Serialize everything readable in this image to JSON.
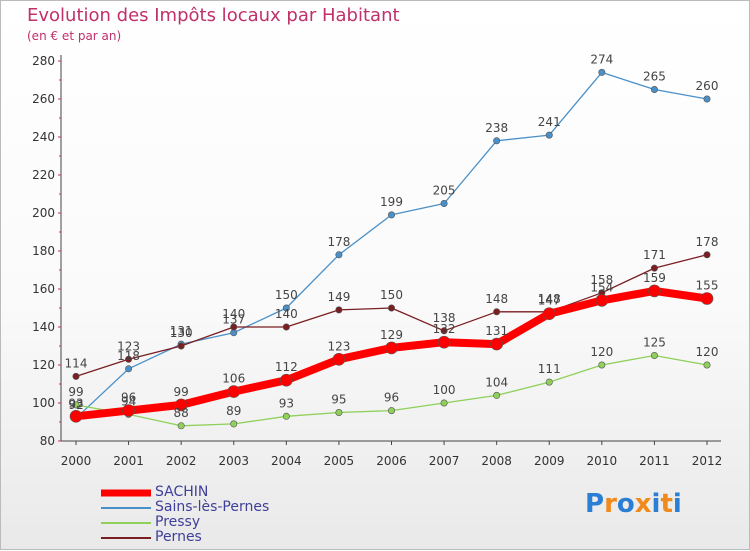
{
  "chart_data": {
    "type": "line",
    "title": "Evolution des Impôts locaux par Habitant",
    "subtitle": "(en € et par an)",
    "x": [
      "2000",
      "2001",
      "2002",
      "2003",
      "2004",
      "2005",
      "2006",
      "2007",
      "2008",
      "2009",
      "2010",
      "2011",
      "2012"
    ],
    "ylim": [
      80,
      280
    ],
    "yticks": [
      80,
      100,
      120,
      140,
      160,
      180,
      200,
      220,
      240,
      260,
      280
    ],
    "grid": false,
    "legend_position": "bottom-left",
    "series": [
      {
        "name": "SACHIN",
        "color": "#ff0000",
        "values": [
          93,
          96,
          99,
          106,
          112,
          123,
          129,
          132,
          131,
          147,
          154,
          159,
          155
        ]
      },
      {
        "name": "Sains-lès-Pernes",
        "color": "#4a90c8",
        "values": [
          92,
          118,
          131,
          137,
          150,
          178,
          199,
          205,
          238,
          241,
          274,
          265,
          260
        ]
      },
      {
        "name": "Pressy",
        "color": "#8ed05a",
        "values": [
          99,
          94,
          88,
          89,
          93,
          95,
          96,
          100,
          104,
          111,
          120,
          125,
          120
        ]
      },
      {
        "name": "Pernes",
        "color": "#7a1e22",
        "values": [
          114,
          123,
          130,
          140,
          140,
          149,
          150,
          138,
          148,
          148,
          158,
          171,
          178
        ]
      }
    ]
  },
  "logo": {
    "text": "Proxiti",
    "letters": [
      "P",
      "r",
      "o",
      "x",
      "i",
      "t",
      "i"
    ],
    "colors": [
      "#2a7fd4",
      "#f08a1c",
      "#2a7fd4",
      "#f08a1c",
      "#2a7fd4",
      "#f08a1c",
      "#2a7fd4"
    ]
  }
}
